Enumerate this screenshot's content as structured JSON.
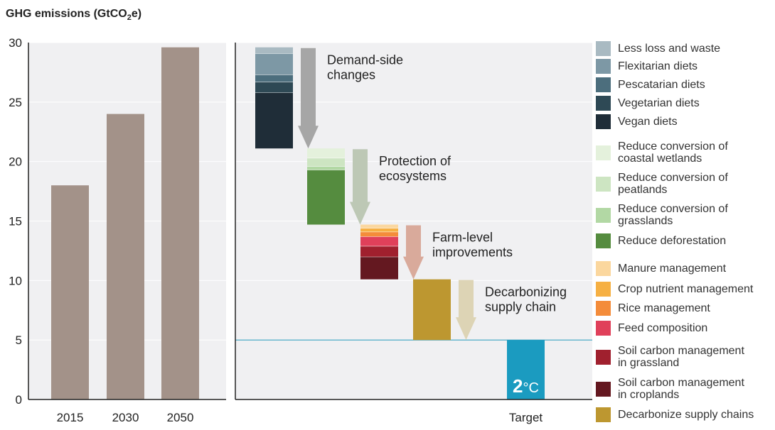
{
  "chart_data": {
    "type": "bar",
    "ylabel": "GHG emissions (GtCO",
    "ylabel_sub": "2",
    "ylabel_suffix": "e)",
    "ylim": [
      0,
      30
    ],
    "yticks": [
      "0",
      "5",
      "10",
      "15",
      "20",
      "25",
      "30"
    ],
    "grid": true,
    "left_panel": {
      "categories": [
        "2015",
        "2030",
        "2050"
      ],
      "values": [
        18,
        24,
        29.6
      ],
      "color": "#a39289"
    },
    "right_panel": {
      "target_line": 5,
      "target_line_color": "#39a2c0",
      "groups": [
        {
          "label": "Demand-side\nchanges",
          "arrow_color": "#a6a6a6",
          "segments": [
            {
              "name": "Vegan diets",
              "from": 21.1,
              "to": 25.8,
              "color": "#1f2d38"
            },
            {
              "name": "Vegetarian diets",
              "from": 25.8,
              "to": 26.7,
              "color": "#2e4955"
            },
            {
              "name": "Pescatarian diets",
              "from": 26.7,
              "to": 27.3,
              "color": "#4c6e7d"
            },
            {
              "name": "Flexitarian diets",
              "from": 27.3,
              "to": 29.1,
              "color": "#7d98a5"
            },
            {
              "name": "Less loss and waste",
              "from": 29.1,
              "to": 29.6,
              "color": "#a9bac2"
            }
          ]
        },
        {
          "label": "Protection of\necosystems",
          "arrow_color": "#bdc8b5",
          "segments": [
            {
              "name": "Reduce deforestation",
              "from": 14.7,
              "to": 19.3,
              "color": "#558c3f"
            },
            {
              "name": "Reduce conversion of grasslands",
              "from": 19.3,
              "to": 19.6,
              "color": "#b2d8a4"
            },
            {
              "name": "Reduce conversion of peatlands",
              "from": 19.6,
              "to": 20.3,
              "color": "#cde5c2"
            },
            {
              "name": "Reduce conversion of coastal wetlands",
              "from": 20.3,
              "to": 21.1,
              "color": "#e4f1dc"
            }
          ]
        },
        {
          "label": "Farm-level\nimprovements",
          "arrow_color": "#d9aa9b",
          "segments": [
            {
              "name": "Soil carbon management in croplands",
              "from": 10.1,
              "to": 12.0,
              "color": "#641820"
            },
            {
              "name": "Soil carbon management in grassland",
              "from": 12.0,
              "to": 12.9,
              "color": "#a0202e"
            },
            {
              "name": "Feed composition",
              "from": 12.9,
              "to": 13.7,
              "color": "#e0405a"
            },
            {
              "name": "Rice management",
              "from": 13.7,
              "to": 14.1,
              "color": "#f48c3a"
            },
            {
              "name": "Crop nutrient management",
              "from": 14.1,
              "to": 14.4,
              "color": "#f6b043"
            },
            {
              "name": "Manure management",
              "from": 14.4,
              "to": 14.7,
              "color": "#fbd79e"
            }
          ]
        },
        {
          "label": "Decarbonizing\nsupply chain",
          "arrow_color": "#ddd4b5",
          "segments": [
            {
              "name": "Decarbonize supply chains",
              "from": 5.0,
              "to": 10.1,
              "color": "#bd9730"
            }
          ]
        }
      ],
      "target": {
        "category": "Target",
        "value": 5,
        "color": "#1b9bc0",
        "label_big": "2",
        "label_unit": "°C"
      }
    },
    "legend": [
      {
        "label": "Less loss and waste",
        "color": "#a9bac2"
      },
      {
        "label": "Flexitarian diets",
        "color": "#7d98a5"
      },
      {
        "label": "Pescatarian diets",
        "color": "#4c6e7d"
      },
      {
        "label": "Vegetarian diets",
        "color": "#2e4955"
      },
      {
        "label": "Vegan diets",
        "color": "#1f2d38"
      },
      {
        "label": "Reduce conversion of\ncoastal wetlands",
        "color": "#e4f1dc"
      },
      {
        "label": "Reduce conversion of\npeatlands",
        "color": "#cde5c2"
      },
      {
        "label": "Reduce conversion of\ngrasslands",
        "color": "#b2d8a4"
      },
      {
        "label": "Reduce deforestation",
        "color": "#558c3f"
      },
      {
        "label": "Manure management",
        "color": "#fbd79e"
      },
      {
        "label": "Crop nutrient management",
        "color": "#f6b043"
      },
      {
        "label": "Rice management",
        "color": "#f48c3a"
      },
      {
        "label": "Feed composition",
        "color": "#e0405a"
      },
      {
        "label": "Soil carbon management\nin grassland",
        "color": "#a0202e"
      },
      {
        "label": "Soil carbon management\nin croplands",
        "color": "#641820"
      },
      {
        "label": "Decarbonize supply chains",
        "color": "#bd9730"
      }
    ]
  }
}
